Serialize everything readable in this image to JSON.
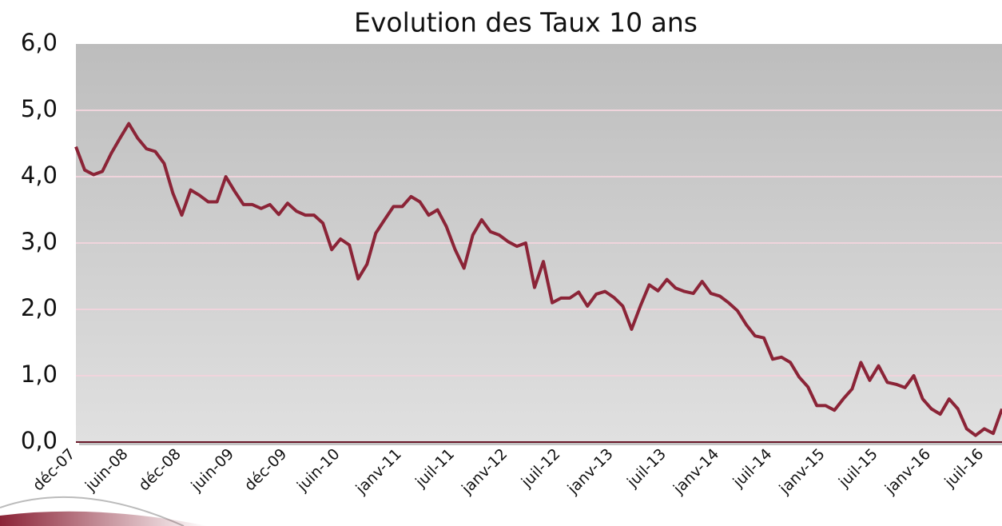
{
  "chart_data": {
    "type": "line",
    "title": "Evolution des Taux 10 ans",
    "categories": [
      "déc-07",
      null,
      null,
      null,
      null,
      null,
      "juin-08",
      null,
      null,
      null,
      null,
      null,
      "déc-08",
      null,
      null,
      null,
      null,
      null,
      "juin-09",
      null,
      null,
      null,
      null,
      null,
      "déc-09",
      null,
      null,
      null,
      null,
      null,
      "juin-10",
      null,
      null,
      null,
      null,
      null,
      null,
      "janv-11",
      null,
      null,
      null,
      null,
      null,
      "juil-11",
      null,
      null,
      null,
      null,
      null,
      "janv-12",
      null,
      null,
      null,
      null,
      null,
      "juil-12",
      null,
      null,
      null,
      null,
      null,
      "janv-13",
      null,
      null,
      null,
      null,
      null,
      "juil-13",
      null,
      null,
      null,
      null,
      null,
      "janv-14",
      null,
      null,
      null,
      null,
      null,
      "juil-14",
      null,
      null,
      null,
      null,
      null,
      "janv-15",
      null,
      null,
      null,
      null,
      null,
      "juil-15",
      null,
      null,
      null,
      null,
      null,
      "janv-16",
      null,
      null,
      null,
      null,
      null,
      "juil-16",
      null,
      null
    ],
    "series": [
      {
        "color": "#8b2437",
        "values": [
          4.45,
          4.1,
          4.03,
          4.08,
          4.35,
          4.58,
          4.8,
          4.58,
          4.42,
          4.38,
          4.2,
          3.75,
          3.42,
          3.8,
          3.72,
          3.62,
          3.62,
          4.0,
          3.78,
          3.58,
          3.58,
          3.52,
          3.58,
          3.43,
          3.6,
          3.48,
          3.42,
          3.42,
          3.3,
          2.9,
          3.06,
          2.97,
          2.46,
          2.68,
          3.15,
          3.35,
          3.55,
          3.55,
          3.7,
          3.62,
          3.42,
          3.5,
          3.25,
          2.9,
          2.62,
          3.12,
          3.35,
          3.17,
          3.12,
          3.02,
          2.95,
          3.0,
          2.33,
          2.72,
          2.1,
          2.17,
          2.17,
          2.26,
          2.05,
          2.23,
          2.27,
          2.18,
          2.05,
          1.7,
          2.05,
          2.37,
          2.28,
          2.45,
          2.32,
          2.27,
          2.24,
          2.42,
          2.24,
          2.2,
          2.1,
          1.98,
          1.77,
          1.6,
          1.57,
          1.25,
          1.28,
          1.2,
          0.98,
          0.83,
          0.55,
          0.55,
          0.48,
          0.65,
          0.8,
          1.2,
          0.93,
          1.15,
          0.9,
          0.87,
          0.82,
          1.0,
          0.65,
          0.5,
          0.42,
          0.65,
          0.5,
          0.2,
          0.1,
          0.2,
          0.13,
          0.5
        ]
      }
    ],
    "ylim": [
      0,
      6
    ],
    "yticks": [
      {
        "value": 0,
        "label": "0,0"
      },
      {
        "value": 1,
        "label": "1,0"
      },
      {
        "value": 2,
        "label": "2,0"
      },
      {
        "value": 3,
        "label": "3,0"
      },
      {
        "value": 4,
        "label": "4,0"
      },
      {
        "value": 5,
        "label": "5,0"
      },
      {
        "value": 6,
        "label": "6,0"
      }
    ],
    "grid": true
  }
}
